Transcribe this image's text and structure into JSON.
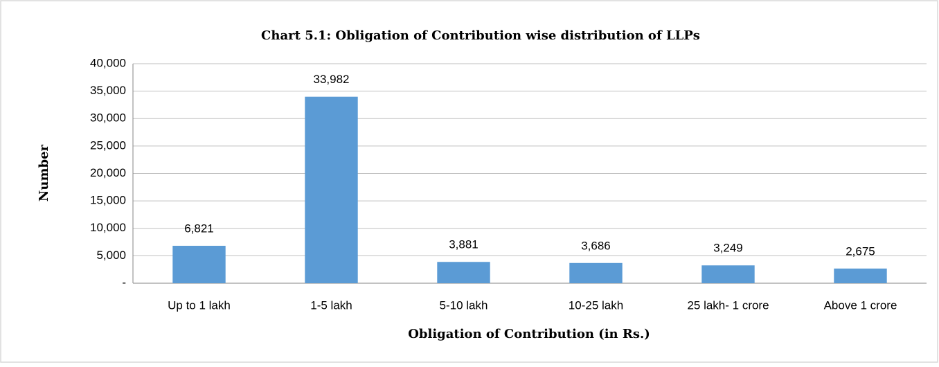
{
  "chart_data": {
    "type": "bar",
    "title": "Chart 5.1: Obligation of Contribution wise distribution of LLPs",
    "x_label": "Obligation of Contribution (in Rs.)",
    "y_label": "Number",
    "categories": [
      "Up to 1 lakh",
      "1-5 lakh",
      "5-10 lakh",
      "10-25 lakh",
      "25 lakh- 1 crore",
      "Above 1 crore"
    ],
    "values": [
      6821,
      33982,
      3881,
      3686,
      3249,
      2675
    ],
    "value_labels": [
      "6,821",
      "33,982",
      "3,881",
      "3,686",
      "3,249",
      "2,675"
    ],
    "color": "#5b9bd5",
    "ylim": [
      0,
      40000
    ],
    "yticks": [
      {
        "value": 0,
        "label": "-"
      },
      {
        "value": 5000,
        "label": "5,000"
      },
      {
        "value": 10000,
        "label": "10,000"
      },
      {
        "value": 15000,
        "label": "15,000"
      },
      {
        "value": 20000,
        "label": "20,000"
      },
      {
        "value": 25000,
        "label": "25,000"
      },
      {
        "value": 30000,
        "label": "30,000"
      },
      {
        "value": 35000,
        "label": "35,000"
      },
      {
        "value": 40000,
        "label": "40,000"
      }
    ],
    "grid": true
  }
}
